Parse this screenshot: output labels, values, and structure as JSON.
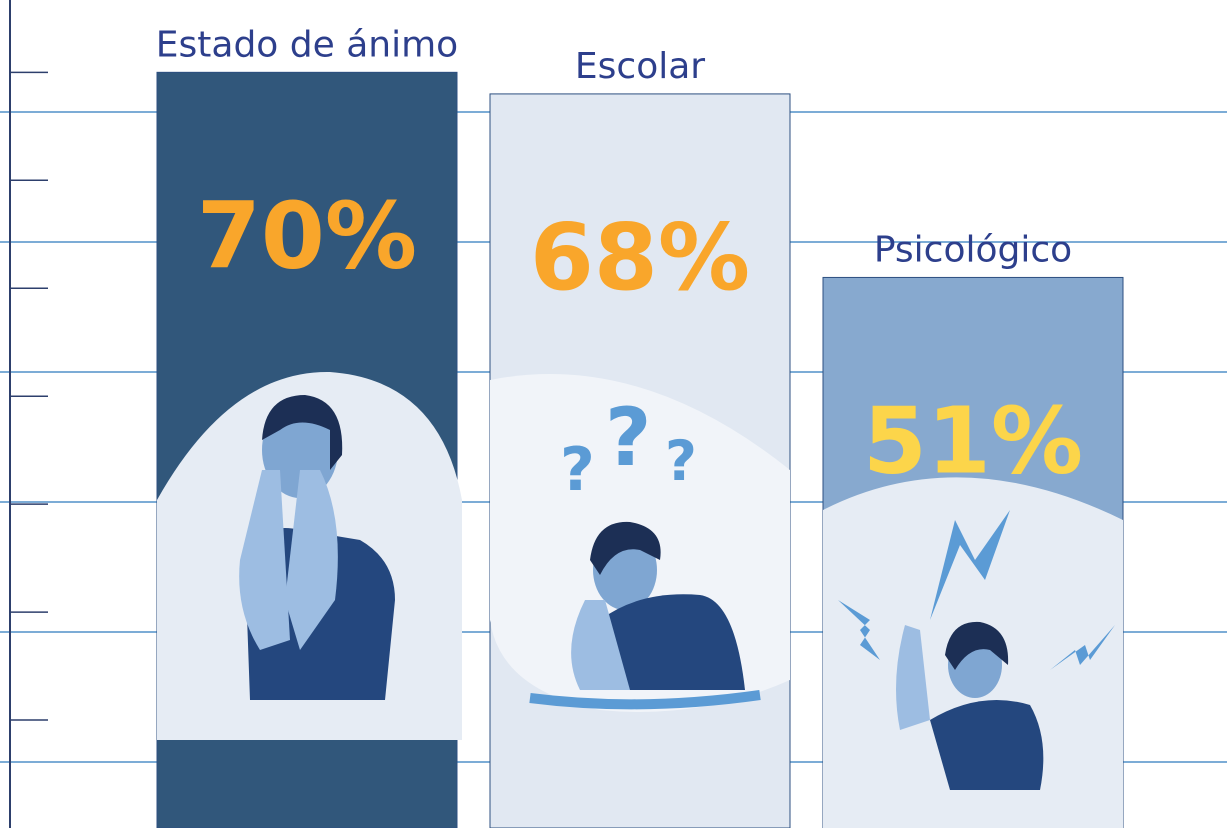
{
  "chart_data": {
    "type": "bar",
    "categories": [
      "Estado de ánimo",
      "Escolar",
      "Psicológico"
    ],
    "values": [
      70,
      68,
      51
    ],
    "value_labels": [
      "70%",
      "68%",
      "51%"
    ],
    "colors": [
      "#31577b",
      "#e1e8f2",
      "#87a9cf"
    ],
    "value_label_colors": [
      "#f9a62b",
      "#f9a62b",
      "#fcd54a"
    ],
    "ylim": [
      0,
      76.7
    ],
    "yticks": [
      10,
      20,
      30,
      40,
      50,
      60,
      70
    ]
  }
}
